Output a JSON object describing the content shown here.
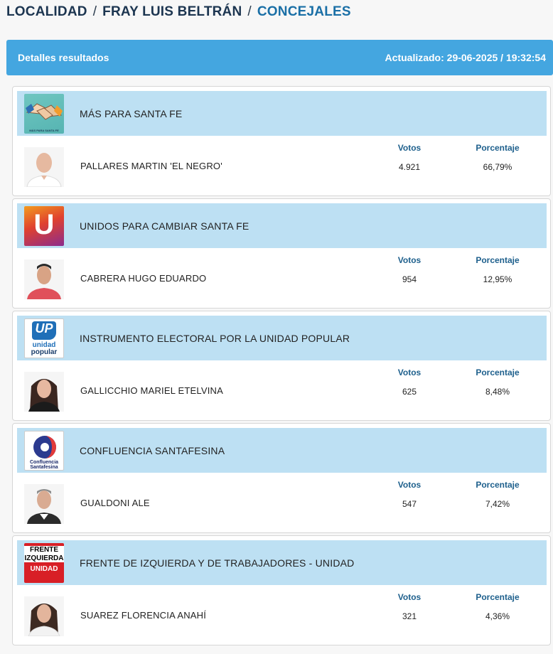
{
  "breadcrumb": {
    "localidad": "LOCALIDAD",
    "sep1": "/",
    "municipio": "FRAY LUIS BELTRÁN",
    "sep2": "/",
    "cargo": "CONCEJALES"
  },
  "header": {
    "title": "Detalles resultados",
    "updated": "Actualizado: 29-06-2025 / 19:32:54"
  },
  "columns": {
    "votos": "Votos",
    "porcentaje": "Porcentaje"
  },
  "results": [
    {
      "party": "MÁS PARA SANTA FE",
      "logo_text": "MÁS PARA SANTA FE",
      "candidate": "PALLARES MARTIN 'EL NEGRO'",
      "votes": "4.921",
      "percent": "66,79%",
      "percent_value": 66.79
    },
    {
      "party": "UNIDOS PARA CAMBIAR SANTA FE",
      "logo_text": "U",
      "candidate": "CABRERA HUGO EDUARDO",
      "votes": "954",
      "percent": "12,95%",
      "percent_value": 12.95
    },
    {
      "party": "INSTRUMENTO ELECTORAL POR LA UNIDAD POPULAR",
      "logo_text": "UP",
      "logo_text2": "unidad",
      "logo_text3": "popular",
      "candidate": "GALLICCHIO MARIEL ETELVINA",
      "votes": "625",
      "percent": "8,48%",
      "percent_value": 8.48
    },
    {
      "party": "CONFLUENCIA SANTAFESINA",
      "logo_text": "Confluencia",
      "logo_text2": "Santafesina",
      "candidate": "GUALDONI ALE",
      "votes": "547",
      "percent": "7,42%",
      "percent_value": 7.42
    },
    {
      "party": "FRENTE DE IZQUIERDA Y DE TRABAJADORES - UNIDAD",
      "logo_text": "FRENTE DE",
      "logo_text2": "IZQUIERDA",
      "logo_text3": "UNIDAD",
      "candidate": "SUAREZ FLORENCIA ANAHÍ",
      "votes": "321",
      "percent": "4,36%",
      "percent_value": 4.36
    }
  ],
  "colors": {
    "header_bg": "#44a6e0",
    "party_bar_bg": "#bde0f3",
    "column_header": "#1d5f8c",
    "breadcrumb_active": "#1a6fa6"
  }
}
